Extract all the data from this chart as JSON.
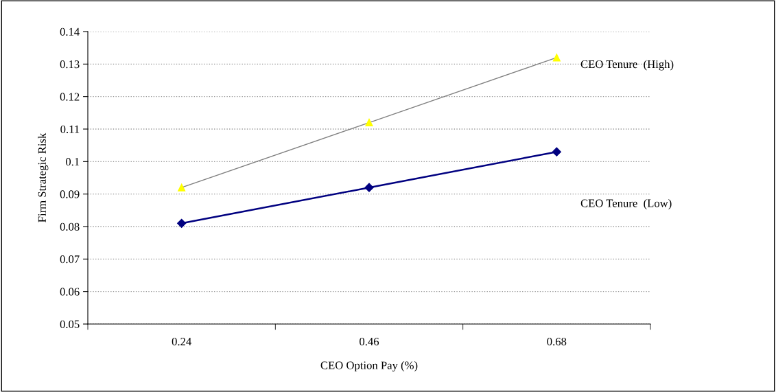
{
  "chart_data": {
    "type": "line",
    "xlabel": "CEO Option Pay (%)",
    "ylabel": "Firm Strategic Risk",
    "categories": [
      "0.24",
      "0.46",
      "0.68"
    ],
    "series": [
      {
        "name": "CEO Tenure  (High)",
        "color": "#ffff00",
        "marker": "triangle",
        "values": [
          0.092,
          0.112,
          0.132
        ]
      },
      {
        "name": "CEO Tenure  (Low)",
        "color": "#000080",
        "marker": "diamond",
        "values": [
          0.081,
          0.092,
          0.103
        ]
      }
    ],
    "ylim": [
      0.05,
      0.14
    ],
    "yticks": [
      0.05,
      0.06,
      0.07,
      0.08,
      0.09,
      0.1,
      0.11,
      0.12,
      0.13,
      0.14
    ],
    "grid": "y",
    "legend": false
  }
}
